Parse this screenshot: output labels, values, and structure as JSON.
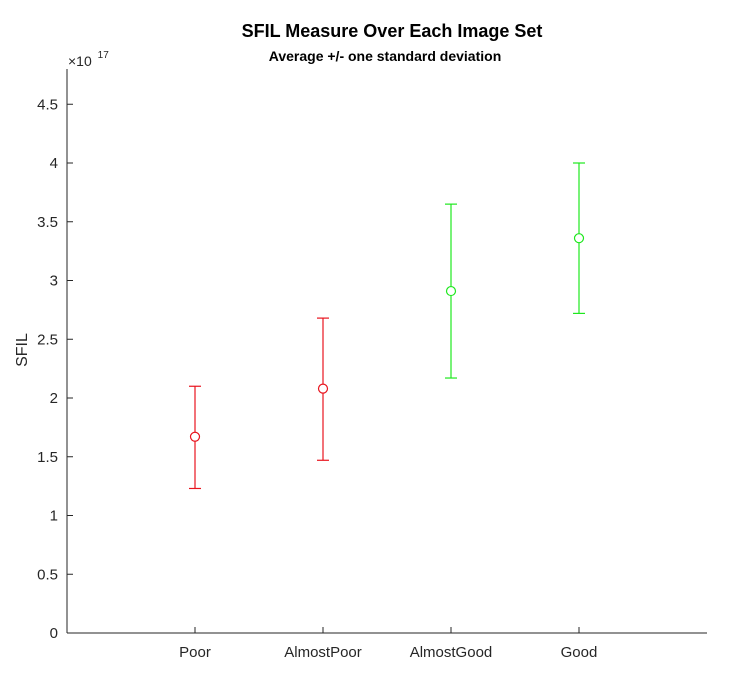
{
  "chart_data": {
    "type": "errorbar",
    "title": "SFIL Measure Over Each Image Set",
    "subtitle": "Average +/- one standard deviation",
    "xlabel": "",
    "ylabel": "SFIL",
    "y_exponent_base": "×10",
    "y_exponent_power": "17",
    "ylim": [
      0,
      4.8
    ],
    "yticks": [
      0,
      0.5,
      1,
      1.5,
      2,
      2.5,
      3,
      3.5,
      4,
      4.5
    ],
    "ytick_labels": [
      "0",
      "0.5",
      "1",
      "1.5",
      "2",
      "2.5",
      "3",
      "3.5",
      "4",
      "4.5"
    ],
    "xlim": [
      0,
      5
    ],
    "categories": [
      "Poor",
      "AlmostPoor",
      "AlmostGood",
      "Good"
    ],
    "means": [
      1.67,
      2.08,
      2.91,
      3.36
    ],
    "lower": [
      1.23,
      1.47,
      2.17,
      2.72
    ],
    "upper": [
      2.1,
      2.68,
      3.65,
      4.0
    ],
    "colors": [
      "#e8141e",
      "#e8141e",
      "#1ee81e",
      "#1ee81e"
    ],
    "grid": false,
    "legend": "none"
  }
}
